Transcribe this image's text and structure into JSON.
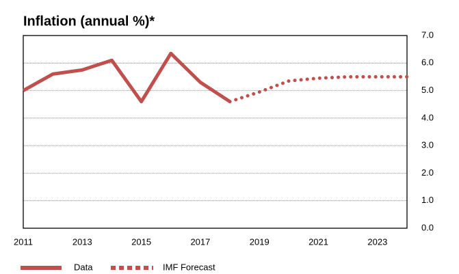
{
  "chart_data": {
    "type": "line",
    "title": "Inflation (annual %)*",
    "x": [
      2011,
      2012,
      2013,
      2014,
      2015,
      2016,
      2017,
      2018,
      2019,
      2020,
      2021,
      2022,
      2023,
      2024
    ],
    "series": [
      {
        "name": "Data",
        "color": "#c0504d",
        "style": "solid",
        "values": [
          5.0,
          5.6,
          5.75,
          6.1,
          4.6,
          6.35,
          5.3,
          4.6,
          null,
          null,
          null,
          null,
          null,
          null
        ]
      },
      {
        "name": "IMF Forecast",
        "color": "#c0504d",
        "style": "dotted",
        "values": [
          null,
          null,
          null,
          null,
          null,
          null,
          null,
          4.6,
          4.95,
          5.35,
          5.45,
          5.5,
          5.5,
          5.5
        ]
      }
    ],
    "xlim": [
      2011,
      2024
    ],
    "xticks": [
      2011,
      2013,
      2015,
      2017,
      2019,
      2021,
      2023
    ],
    "ylim": [
      0,
      7
    ],
    "yticks": [
      {
        "value": 0,
        "label": "0.0"
      },
      {
        "value": 1,
        "label": "1.0"
      },
      {
        "value": 2,
        "label": "2.0"
      },
      {
        "value": 3,
        "label": "3.0"
      },
      {
        "value": 4,
        "label": "4.0"
      },
      {
        "value": 5,
        "label": "5.0"
      },
      {
        "value": 6,
        "label": "6.0"
      },
      {
        "value": 7,
        "label": "7.0"
      }
    ],
    "grid": true,
    "legend": "bottom"
  }
}
